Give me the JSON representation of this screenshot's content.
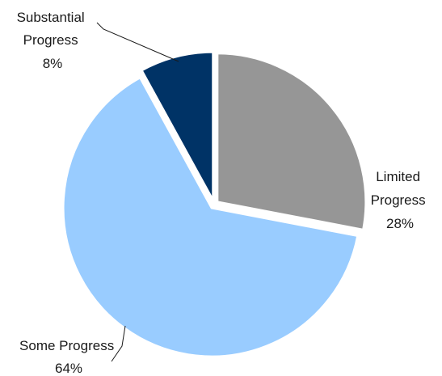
{
  "chart_data": {
    "type": "pie",
    "start_angle_deg": 0,
    "direction": "clockwise",
    "slices": [
      {
        "category": "Limited Progress",
        "label_lines": [
          "Limited",
          "Progress"
        ],
        "value": 28,
        "value_label": "28%",
        "color": "#969696"
      },
      {
        "category": "Some Progress",
        "label_lines": [
          "Some Progress"
        ],
        "value": 64,
        "value_label": "64%",
        "color": "#99CCFF"
      },
      {
        "category": "Substantial Progress",
        "label_lines": [
          "Substantial",
          "Progress"
        ],
        "value": 8,
        "value_label": "8%",
        "color": "#003366"
      }
    ],
    "title": "",
    "legend": "none",
    "slice_border_color": "#ffffff"
  }
}
